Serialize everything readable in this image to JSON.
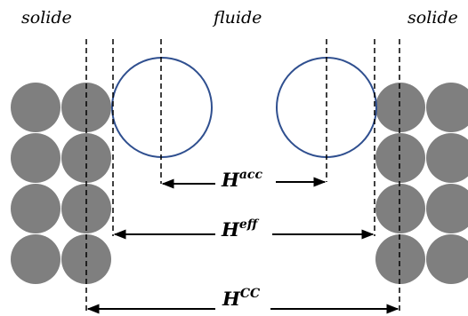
{
  "labels": {
    "left": "solide",
    "center": "fluide",
    "right": "solide"
  },
  "distances": {
    "acc": {
      "symbol": "H",
      "superscript": "acc"
    },
    "eff": {
      "symbol": "H",
      "superscript": "eff"
    },
    "cc": {
      "symbol": "H",
      "superscript": "CC"
    }
  },
  "colors": {
    "solid_particle": "#7f7f7f",
    "fluid_particle_stroke": "#2f4f8f",
    "line": "#000000"
  }
}
